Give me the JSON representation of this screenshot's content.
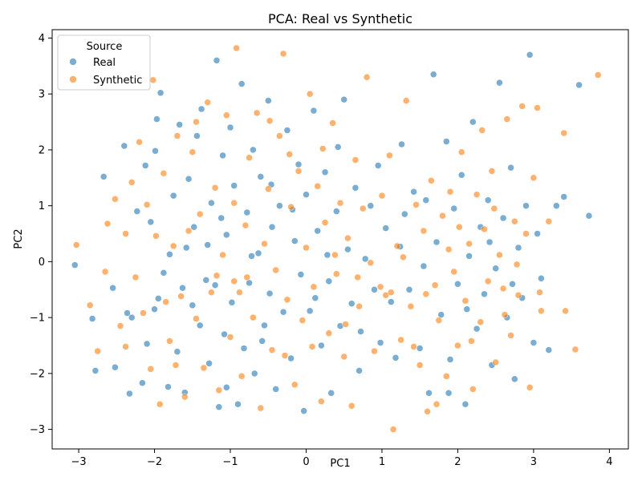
{
  "chart_data": {
    "type": "scatter",
    "title": "PCA: Real vs Synthetic",
    "xlabel": "PC1",
    "ylabel": "PC2",
    "xlim": [
      -3.35,
      4.25
    ],
    "ylim": [
      -3.35,
      4.15
    ],
    "xticks": [
      -3,
      -2,
      -1,
      0,
      1,
      2,
      3,
      4
    ],
    "yticks": [
      -3,
      -2,
      -1,
      0,
      1,
      2,
      3,
      4
    ],
    "grid": false,
    "legend": {
      "title": "Source",
      "placement": "top-left"
    },
    "series": [
      {
        "name": "Real",
        "color": "#1f77b4",
        "points": [
          [
            -3.05,
            -0.06
          ],
          [
            -2.82,
            -1.02
          ],
          [
            -2.78,
            -1.95
          ],
          [
            -2.67,
            1.52
          ],
          [
            -2.55,
            -0.47
          ],
          [
            -2.52,
            -1.89
          ],
          [
            -2.4,
            2.07
          ],
          [
            -2.36,
            -0.92
          ],
          [
            -2.33,
            -2.36
          ],
          [
            -2.23,
            0.9
          ],
          [
            -2.16,
            -2.17
          ],
          [
            -2.12,
            1.72
          ],
          [
            -2.1,
            -1.47
          ],
          [
            -2.05,
            0.71
          ],
          [
            -1.99,
            1.98
          ],
          [
            -1.97,
            2.55
          ],
          [
            -1.92,
            3.02
          ],
          [
            -1.88,
            -0.2
          ],
          [
            -1.82,
            -2.24
          ],
          [
            -1.8,
            0.13
          ],
          [
            -1.75,
            1.18
          ],
          [
            -1.7,
            -1.61
          ],
          [
            -1.67,
            2.45
          ],
          [
            -1.63,
            -0.47
          ],
          [
            -1.6,
            -2.34
          ],
          [
            -1.55,
            1.48
          ],
          [
            -1.5,
            -0.78
          ],
          [
            -1.48,
            0.62
          ],
          [
            -1.44,
            2.25
          ],
          [
            -1.4,
            -1.14
          ],
          [
            -1.38,
            2.73
          ],
          [
            -1.3,
            0.3
          ],
          [
            -1.28,
            -1.82
          ],
          [
            -1.25,
            1.05
          ],
          [
            -1.2,
            -0.42
          ],
          [
            -1.18,
            3.6
          ],
          [
            -1.15,
            -2.6
          ],
          [
            -1.1,
            1.9
          ],
          [
            -1.08,
            -1.3
          ],
          [
            -1.05,
            0.48
          ],
          [
            -1.0,
            2.4
          ],
          [
            -0.98,
            -0.73
          ],
          [
            -0.95,
            1.36
          ],
          [
            -0.9,
            -2.55
          ],
          [
            -0.85,
            3.18
          ],
          [
            -0.82,
            -1.55
          ],
          [
            -0.78,
            0.88
          ],
          [
            -0.75,
            -0.38
          ],
          [
            -0.7,
            2.0
          ],
          [
            -0.68,
            -2.0
          ],
          [
            -0.63,
            0.15
          ],
          [
            -0.6,
            1.52
          ],
          [
            -0.55,
            -1.14
          ],
          [
            -0.5,
            2.88
          ],
          [
            -0.48,
            -0.57
          ],
          [
            -0.45,
            0.62
          ],
          [
            -0.4,
            -2.28
          ],
          [
            -0.35,
            1.0
          ],
          [
            -0.3,
            -0.9
          ],
          [
            -0.25,
            2.35
          ],
          [
            -0.2,
            -1.73
          ],
          [
            -0.15,
            0.37
          ],
          [
            -0.1,
            1.74
          ],
          [
            -0.07,
            -0.23
          ],
          [
            -0.03,
            -2.67
          ],
          [
            0.0,
            1.2
          ],
          [
            0.05,
            -0.88
          ],
          [
            0.1,
            2.7
          ],
          [
            0.15,
            0.55
          ],
          [
            0.2,
            -1.5
          ],
          [
            0.25,
            1.6
          ],
          [
            0.3,
            -0.35
          ],
          [
            0.33,
            -2.35
          ],
          [
            0.4,
            0.9
          ],
          [
            0.45,
            -1.15
          ],
          [
            0.5,
            2.9
          ],
          [
            0.55,
            0.22
          ],
          [
            0.6,
            -0.75
          ],
          [
            0.65,
            1.32
          ],
          [
            0.7,
            -1.95
          ],
          [
            0.78,
            0.05
          ],
          [
            0.85,
            1.0
          ],
          [
            0.9,
            -0.5
          ],
          [
            0.98,
            -1.45
          ],
          [
            1.05,
            0.6
          ],
          [
            1.12,
            -0.72
          ],
          [
            1.18,
            -1.72
          ],
          [
            1.24,
            0.27
          ],
          [
            1.3,
            0.85
          ],
          [
            1.36,
            -0.5
          ],
          [
            1.42,
            1.25
          ],
          [
            1.5,
            -1.55
          ],
          [
            1.55,
            -0.08
          ],
          [
            1.62,
            -2.35
          ],
          [
            1.68,
            3.35
          ],
          [
            1.72,
            0.35
          ],
          [
            1.78,
            -0.95
          ],
          [
            1.85,
            2.15
          ],
          [
            1.9,
            -1.75
          ],
          [
            1.95,
            0.95
          ],
          [
            2.0,
            -0.4
          ],
          [
            2.05,
            1.55
          ],
          [
            2.1,
            -2.55
          ],
          [
            2.15,
            0.1
          ],
          [
            2.2,
            2.5
          ],
          [
            2.25,
            -1.2
          ],
          [
            2.3,
            0.62
          ],
          [
            2.35,
            -0.58
          ],
          [
            2.4,
            1.1
          ],
          [
            2.45,
            -1.85
          ],
          [
            2.5,
            -0.12
          ],
          [
            2.55,
            3.2
          ],
          [
            2.6,
            0.78
          ],
          [
            2.65,
            -1.0
          ],
          [
            2.7,
            1.68
          ],
          [
            2.75,
            -2.1
          ],
          [
            2.8,
            0.25
          ],
          [
            2.85,
            -0.65
          ],
          [
            2.9,
            1.0
          ],
          [
            2.95,
            3.7
          ],
          [
            3.0,
            -1.45
          ],
          [
            3.05,
            0.5
          ],
          [
            3.1,
            -0.3
          ],
          [
            3.2,
            -1.58
          ],
          [
            3.3,
            1.0
          ],
          [
            3.4,
            1.16
          ],
          [
            3.6,
            3.16
          ],
          [
            3.73,
            0.82
          ],
          [
            -2.3,
            -1.0
          ],
          [
            -1.95,
            -0.66
          ],
          [
            -1.58,
            0.25
          ],
          [
            -1.32,
            -0.33
          ],
          [
            -1.05,
            -2.25
          ],
          [
            -0.72,
            0.1
          ],
          [
            -0.46,
            1.38
          ],
          [
            -0.18,
            0.93
          ],
          [
            0.12,
            -0.65
          ],
          [
            0.42,
            2.05
          ],
          [
            0.72,
            -1.25
          ],
          [
            0.95,
            1.72
          ],
          [
            1.26,
            2.1
          ],
          [
            1.58,
            1.1
          ],
          [
            1.88,
            -2.35
          ],
          [
            2.12,
            -0.85
          ],
          [
            2.42,
            0.35
          ],
          [
            2.72,
            -0.4
          ],
          [
            -2.0,
            -0.85
          ],
          [
            -1.12,
            0.78
          ],
          [
            -0.58,
            -1.42
          ],
          [
            0.28,
            0.12
          ]
        ]
      },
      {
        "name": "Synthetic",
        "color": "#ff7f0e",
        "points": [
          [
            -3.03,
            0.3
          ],
          [
            -2.85,
            -0.78
          ],
          [
            -2.75,
            -1.6
          ],
          [
            -2.62,
            0.68
          ],
          [
            -2.52,
            1.12
          ],
          [
            -2.45,
            -1.15
          ],
          [
            -2.38,
            -1.52
          ],
          [
            -2.3,
            1.42
          ],
          [
            -2.25,
            -0.28
          ],
          [
            -2.2,
            2.14
          ],
          [
            -2.15,
            -0.92
          ],
          [
            -2.1,
            1.02
          ],
          [
            -2.05,
            -1.92
          ],
          [
            -2.02,
            3.25
          ],
          [
            -1.98,
            0.46
          ],
          [
            -1.93,
            -2.55
          ],
          [
            -1.88,
            1.58
          ],
          [
            -1.85,
            -0.72
          ],
          [
            -1.8,
            -1.42
          ],
          [
            -1.75,
            0.28
          ],
          [
            -1.7,
            2.25
          ],
          [
            -1.65,
            -0.62
          ],
          [
            -1.6,
            -2.42
          ],
          [
            -1.55,
            0.55
          ],
          [
            -1.5,
            1.96
          ],
          [
            -1.45,
            -1.02
          ],
          [
            -1.4,
            0.85
          ],
          [
            -1.35,
            -1.9
          ],
          [
            -1.3,
            2.85
          ],
          [
            -1.25,
            -0.55
          ],
          [
            -1.2,
            1.32
          ],
          [
            -1.15,
            -2.3
          ],
          [
            -1.1,
            0.12
          ],
          [
            -1.05,
            2.62
          ],
          [
            -1.0,
            -1.35
          ],
          [
            -0.95,
            1.05
          ],
          [
            -0.92,
            3.82
          ],
          [
            -0.88,
            -0.55
          ],
          [
            -0.85,
            -2.05
          ],
          [
            -0.8,
            0.65
          ],
          [
            -0.75,
            1.86
          ],
          [
            -0.7,
            -1.0
          ],
          [
            -0.65,
            2.66
          ],
          [
            -0.6,
            -2.62
          ],
          [
            -0.55,
            0.32
          ],
          [
            -0.5,
            1.3
          ],
          [
            -0.45,
            -1.58
          ],
          [
            -0.4,
            -0.15
          ],
          [
            -0.35,
            2.25
          ],
          [
            -0.3,
            3.72
          ],
          [
            -0.25,
            -0.68
          ],
          [
            -0.2,
            0.98
          ],
          [
            -0.15,
            -2.2
          ],
          [
            -0.1,
            1.62
          ],
          [
            -0.05,
            -1.05
          ],
          [
            0.0,
            0.25
          ],
          [
            0.05,
            3.0
          ],
          [
            0.1,
            -0.45
          ],
          [
            0.15,
            1.35
          ],
          [
            0.2,
            -2.5
          ],
          [
            0.25,
            0.7
          ],
          [
            0.3,
            -1.28
          ],
          [
            0.35,
            2.48
          ],
          [
            0.4,
            -0.22
          ],
          [
            0.45,
            1.05
          ],
          [
            0.5,
            -1.7
          ],
          [
            0.55,
            0.42
          ],
          [
            0.6,
            -2.58
          ],
          [
            0.65,
            1.82
          ],
          [
            0.7,
            -0.8
          ],
          [
            0.75,
            0.95
          ],
          [
            0.8,
            3.3
          ],
          [
            0.85,
            -0.02
          ],
          [
            0.9,
            -1.6
          ],
          [
            1.0,
            1.18
          ],
          [
            1.05,
            -0.6
          ],
          [
            1.1,
            1.9
          ],
          [
            1.15,
            -3.0
          ],
          [
            1.2,
            0.28
          ],
          [
            1.25,
            -1.4
          ],
          [
            1.32,
            2.88
          ],
          [
            1.38,
            -0.8
          ],
          [
            1.45,
            1.02
          ],
          [
            1.5,
            -1.85
          ],
          [
            1.55,
            0.55
          ],
          [
            1.6,
            -2.68
          ],
          [
            1.65,
            1.45
          ],
          [
            1.7,
            -0.42
          ],
          [
            1.75,
            -1.05
          ],
          [
            1.8,
            0.82
          ],
          [
            1.85,
            -2.05
          ],
          [
            1.9,
            1.25
          ],
          [
            1.95,
            -0.18
          ],
          [
            2.0,
            -1.5
          ],
          [
            2.05,
            1.96
          ],
          [
            2.1,
            -0.7
          ],
          [
            2.15,
            0.32
          ],
          [
            2.2,
            -2.28
          ],
          [
            2.25,
            1.2
          ],
          [
            2.3,
            -1.08
          ],
          [
            2.35,
            0.58
          ],
          [
            2.4,
            -0.35
          ],
          [
            2.45,
            1.62
          ],
          [
            2.5,
            -1.8
          ],
          [
            2.55,
            0.12
          ],
          [
            2.6,
            -0.48
          ],
          [
            2.65,
            2.55
          ],
          [
            2.7,
            -1.32
          ],
          [
            2.75,
            0.72
          ],
          [
            2.8,
            -0.6
          ],
          [
            2.85,
            2.78
          ],
          [
            2.9,
            0.5
          ],
          [
            2.95,
            -2.25
          ],
          [
            3.0,
            1.5
          ],
          [
            3.05,
            2.75
          ],
          [
            3.1,
            -0.88
          ],
          [
            3.2,
            0.72
          ],
          [
            3.4,
            2.3
          ],
          [
            3.42,
            -0.88
          ],
          [
            3.55,
            -1.57
          ],
          [
            3.85,
            3.34
          ],
          [
            -2.65,
            -0.18
          ],
          [
            -2.38,
            0.5
          ],
          [
            -1.72,
            -1.85
          ],
          [
            -1.18,
            -0.25
          ],
          [
            -0.78,
            -0.28
          ],
          [
            -0.48,
            2.52
          ],
          [
            -0.22,
            1.92
          ],
          [
            0.08,
            -1.52
          ],
          [
            0.38,
            0.12
          ],
          [
            0.68,
            -0.28
          ],
          [
            0.98,
            -0.45
          ],
          [
            1.28,
            0.08
          ],
          [
            1.58,
            -0.58
          ],
          [
            1.88,
            0.22
          ],
          [
            2.18,
            -1.42
          ],
          [
            2.48,
            0.95
          ],
          [
            2.78,
            -0.05
          ],
          [
            3.08,
            -0.55
          ],
          [
            -1.45,
            2.5
          ],
          [
            -0.95,
            -0.35
          ],
          [
            -0.28,
            -1.68
          ],
          [
            0.22,
            2.02
          ],
          [
            0.52,
            -1.12
          ],
          [
            1.12,
            -0.55
          ],
          [
            1.42,
            -1.52
          ],
          [
            1.72,
            -2.55
          ],
          [
            2.02,
            0.62
          ],
          [
            2.32,
            2.35
          ],
          [
            2.62,
            -0.95
          ]
        ]
      }
    ]
  }
}
